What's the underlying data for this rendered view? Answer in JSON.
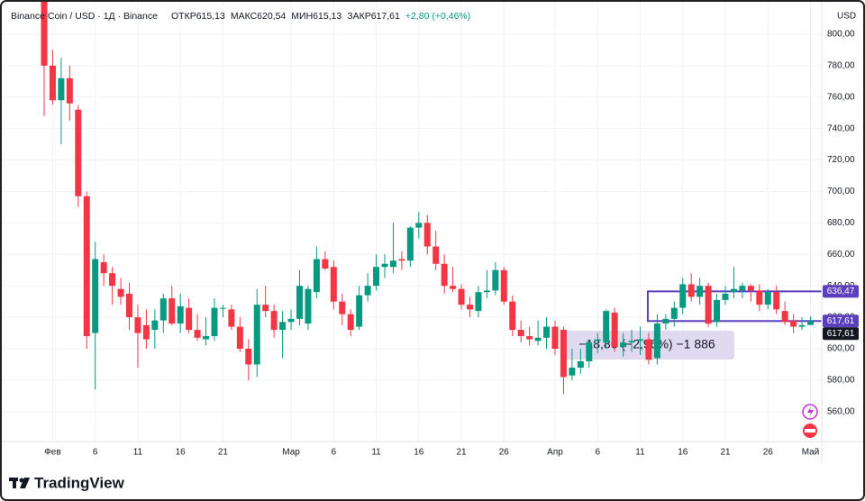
{
  "chart_data": {
    "type": "candlestick",
    "symbol": "Binance Coin / USD · 1Д · Binance",
    "ohlc_texts": [
      "ОТКР615,13",
      "МАКС620,54",
      "МИН615,13",
      "ЗАКР617,61",
      "+2,80 (+0,46%)"
    ],
    "currency": "USD",
    "brand": "TradingView",
    "categories": [
      null,
      "Фев",
      null,
      null,
      null,
      null,
      "6",
      null,
      null,
      null,
      null,
      "11",
      null,
      null,
      null,
      null,
      "16",
      null,
      null,
      null,
      null,
      "21",
      null,
      null,
      null,
      null,
      null,
      null,
      null,
      "Мар",
      null,
      null,
      null,
      null,
      "6",
      null,
      null,
      null,
      null,
      "11",
      null,
      null,
      null,
      null,
      "16",
      null,
      null,
      null,
      null,
      "21",
      null,
      null,
      null,
      null,
      "26",
      null,
      null,
      null,
      null,
      null,
      "Апр",
      null,
      null,
      null,
      null,
      "6",
      null,
      null,
      null,
      null,
      "11",
      null,
      null,
      null,
      null,
      "16",
      null,
      null,
      null,
      null,
      "21",
      null,
      null,
      null,
      null,
      "26",
      null,
      null,
      null,
      null,
      "Май"
    ],
    "open": [
      830,
      780,
      758,
      772,
      752,
      697,
      610,
      655,
      648,
      638,
      635,
      620,
      615,
      612,
      618,
      632,
      616,
      626,
      612,
      606,
      608,
      626,
      625,
      614,
      600,
      590,
      628,
      624,
      612,
      617,
      619,
      616,
      636,
      657,
      652,
      630,
      622,
      614,
      634,
      640,
      652,
      652,
      657,
      656,
      677,
      680,
      665,
      654,
      640,
      638,
      628,
      624,
      636,
      637,
      650,
      630,
      612,
      608,
      605,
      607,
      614,
      612,
      583,
      588,
      592,
      605,
      604,
      623,
      601,
      604,
      605,
      606,
      594,
      616,
      619,
      626,
      641,
      633,
      640,
      617,
      631,
      636,
      637,
      640,
      637,
      628,
      636,
      624,
      618,
      614,
      615.13
    ],
    "high": [
      840,
      790,
      785,
      780,
      755,
      700,
      668,
      660,
      652,
      645,
      642,
      628,
      625,
      625,
      635,
      640,
      635,
      632,
      622,
      620,
      632,
      628,
      628,
      620,
      606,
      638,
      640,
      628,
      624,
      625,
      650,
      640,
      665,
      662,
      656,
      635,
      625,
      640,
      648,
      660,
      660,
      680,
      662,
      678,
      687,
      685,
      675,
      660,
      652,
      641,
      633,
      640,
      650,
      655,
      652,
      634,
      618,
      614,
      618,
      620,
      618,
      614,
      600,
      600,
      606,
      610,
      625,
      626,
      610,
      612,
      614,
      610,
      622,
      622,
      630,
      645,
      648,
      645,
      642,
      635,
      640,
      652,
      642,
      641,
      641,
      638,
      640,
      630,
      622,
      620,
      620.54
    ],
    "low": [
      748,
      755,
      730,
      745,
      690,
      600,
      574,
      640,
      628,
      628,
      612,
      588,
      600,
      600,
      610,
      615,
      610,
      610,
      605,
      602,
      605,
      620,
      612,
      598,
      580,
      582,
      620,
      607,
      594,
      612,
      615,
      612,
      632,
      650,
      625,
      615,
      608,
      612,
      630,
      637,
      645,
      648,
      650,
      652,
      670,
      660,
      650,
      635,
      636,
      625,
      620,
      620,
      632,
      634,
      628,
      608,
      604,
      602,
      602,
      600,
      596,
      571,
      580,
      584,
      588,
      597,
      600,
      598,
      595,
      598,
      596,
      590,
      590,
      612,
      614,
      622,
      630,
      628,
      614,
      614,
      628,
      632,
      632,
      630,
      624,
      625,
      622,
      615,
      610,
      612,
      615.13
    ],
    "close": [
      780,
      758,
      772,
      756,
      697,
      608,
      657,
      648,
      640,
      633,
      620,
      610,
      606,
      618,
      632,
      616,
      627,
      612,
      607,
      608,
      626,
      626,
      614,
      600,
      590,
      628,
      624,
      612,
      617,
      619,
      640,
      638,
      657,
      651,
      630,
      622,
      612,
      634,
      640,
      652,
      654,
      656,
      656,
      677,
      680,
      665,
      654,
      640,
      638,
      628,
      625,
      636,
      637,
      650,
      630,
      612,
      608,
      606,
      607,
      614,
      600,
      582,
      588,
      592,
      604,
      606,
      624,
      601,
      604,
      605,
      606,
      593,
      616,
      619,
      626,
      641,
      633,
      640,
      616,
      631,
      635,
      638,
      640,
      637,
      628,
      636,
      625,
      617,
      614,
      615,
      617.61
    ],
    "up_color": "#089981",
    "down_color": "#f23645",
    "ylim": [
      541,
      816
    ],
    "yticks": [
      {
        "value": 560,
        "label": "560,00"
      },
      {
        "value": 580,
        "label": "580,00"
      },
      {
        "value": 600,
        "label": "600,00"
      },
      {
        "value": 620,
        "label": "620,00"
      },
      {
        "value": 640,
        "label": "640,00"
      },
      {
        "value": 660,
        "label": "660,00"
      },
      {
        "value": 680,
        "label": "680,00"
      },
      {
        "value": 700,
        "label": "700,00"
      },
      {
        "value": 720,
        "label": "720,00"
      },
      {
        "value": 740,
        "label": "740,00"
      },
      {
        "value": 760,
        "label": "760,00"
      },
      {
        "value": 780,
        "label": "780,00"
      },
      {
        "value": 800,
        "label": "800,00"
      }
    ],
    "grid": true,
    "price_labels": [
      {
        "value": 636.47,
        "label": "636,47",
        "color": "#5b3fbf"
      },
      {
        "value": 617.61,
        "label": "617,61",
        "color": "#5b3fbf"
      },
      {
        "value": 617.61,
        "label": "617,61",
        "color": "#131722"
      }
    ],
    "measure": {
      "start": 71,
      "text": "−18,86 (−2,96%) −1 886"
    }
  }
}
